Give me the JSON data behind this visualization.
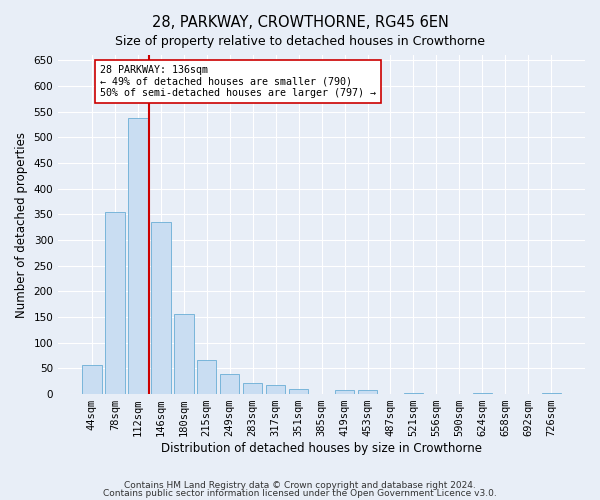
{
  "title": "28, PARKWAY, CROWTHORNE, RG45 6EN",
  "subtitle": "Size of property relative to detached houses in Crowthorne",
  "xlabel": "Distribution of detached houses by size in Crowthorne",
  "ylabel": "Number of detached properties",
  "footnote1": "Contains HM Land Registry data © Crown copyright and database right 2024.",
  "footnote2": "Contains public sector information licensed under the Open Government Licence v3.0.",
  "categories": [
    "44sqm",
    "78sqm",
    "112sqm",
    "146sqm",
    "180sqm",
    "215sqm",
    "249sqm",
    "283sqm",
    "317sqm",
    "351sqm",
    "385sqm",
    "419sqm",
    "453sqm",
    "487sqm",
    "521sqm",
    "556sqm",
    "590sqm",
    "624sqm",
    "658sqm",
    "692sqm",
    "726sqm"
  ],
  "values": [
    57,
    355,
    538,
    335,
    155,
    67,
    40,
    22,
    17,
    10,
    0,
    8,
    8,
    0,
    3,
    0,
    0,
    3,
    0,
    0,
    3
  ],
  "bar_color": "#c9ddf2",
  "bar_edge_color": "#6aaed6",
  "vline_color": "#cc0000",
  "annotation_text": "28 PARKWAY: 136sqm\n← 49% of detached houses are smaller (790)\n50% of semi-detached houses are larger (797) →",
  "annotation_box_edgecolor": "#cc0000",
  "annotation_box_facecolor": "white",
  "ylim": [
    0,
    660
  ],
  "yticks": [
    0,
    50,
    100,
    150,
    200,
    250,
    300,
    350,
    400,
    450,
    500,
    550,
    600,
    650
  ],
  "title_fontsize": 10.5,
  "subtitle_fontsize": 9,
  "tick_fontsize": 7.5,
  "label_fontsize": 8.5,
  "footnote_fontsize": 6.5,
  "background_color": "#e8eef7",
  "plot_bg_color": "#e8eef7"
}
